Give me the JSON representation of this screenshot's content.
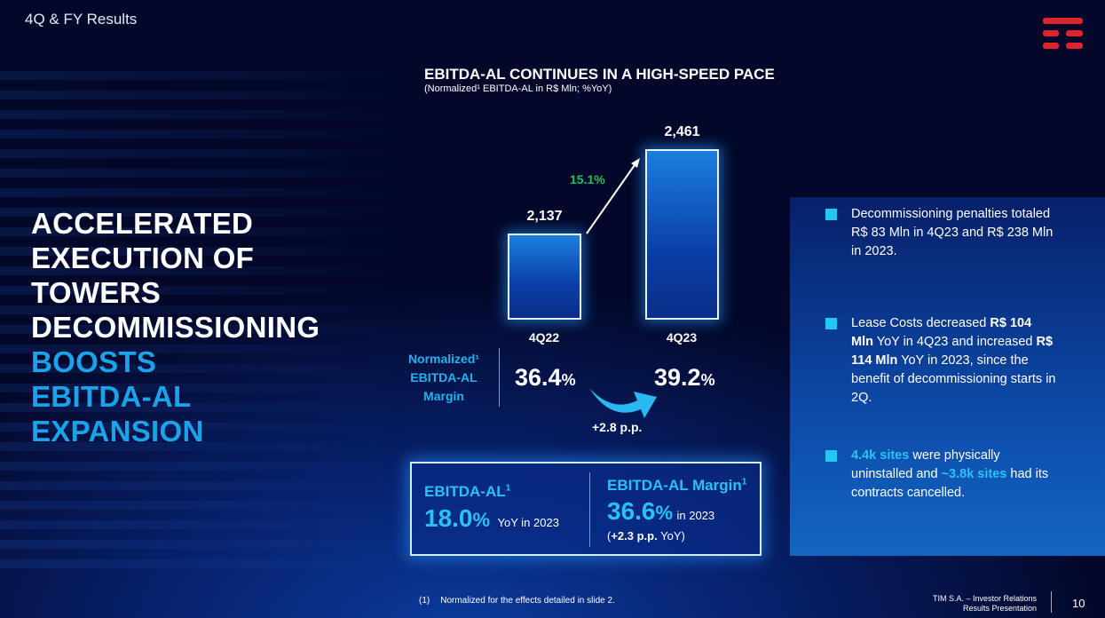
{
  "header": {
    "section": "4Q & FY Results",
    "logo": "TIM"
  },
  "headline": {
    "line1": "ACCELERATED",
    "line2": "EXECUTION OF",
    "line3": "TOWERS",
    "line4": "DECOMMISSIONING",
    "line5": "BOOSTS",
    "line6": "EBITDA-AL",
    "line7": "EXPANSION"
  },
  "chart_data": {
    "type": "bar",
    "title": "EBITDA-AL CONTINUES IN A HIGH-SPEED PACE",
    "subtitle": "(Normalized¹ EBITDA-AL in R$ Mln; %YoY)",
    "categories": [
      "4Q22",
      "4Q23"
    ],
    "values": [
      2137,
      2461
    ],
    "value_labels": [
      "2,137",
      "2,461"
    ],
    "growth_label": "15.1%",
    "colors": {
      "bar": "#1c7ee0",
      "growth": "#1ec25a"
    }
  },
  "margin": {
    "label": "Normalized¹ EBITDA-AL Margin",
    "label_l1": "Normalized¹",
    "label_l2": "EBITDA-AL",
    "label_l3": "Margin",
    "q22": "36.4",
    "q23": "39.2",
    "pct": "%",
    "delta": "+2.8 p.p."
  },
  "summary": {
    "left_title": "EBITDA-AL",
    "left_sup": "1",
    "left_value": "18.0",
    "pct": "%",
    "left_note": "YoY in 2023",
    "right_title": "EBITDA-AL Margin",
    "right_sup": "1",
    "right_value": "36.6",
    "right_note": "in 2023",
    "right_delta_open": "(",
    "right_delta": "+2.3 p.p.",
    "right_delta_close": " YoY)"
  },
  "bullets": [
    {
      "text": "Decommissioning penalties totaled R$ 83 Mln in 4Q23 and R$ 238 Mln in 2023."
    },
    {
      "a": "Lease Costs decreased ",
      "b": "R$ 104 Mln",
      "c": " YoY in 4Q23 and increased ",
      "d": "R$ 114 Mln",
      "e": " YoY in 2023, since the benefit of decommissioning starts in 2Q."
    },
    {
      "a": "4.4k sites",
      "b": " were physically uninstalled and ",
      "c": "~3.8k sites",
      "d": " had its contracts cancelled."
    }
  ],
  "footer": {
    "note_num": "(1)",
    "note": "Normalized for the effects detailed in slide 2.",
    "company": "TIM S.A. – Investor Relations",
    "doc": "Results Presentation",
    "page": "10"
  }
}
